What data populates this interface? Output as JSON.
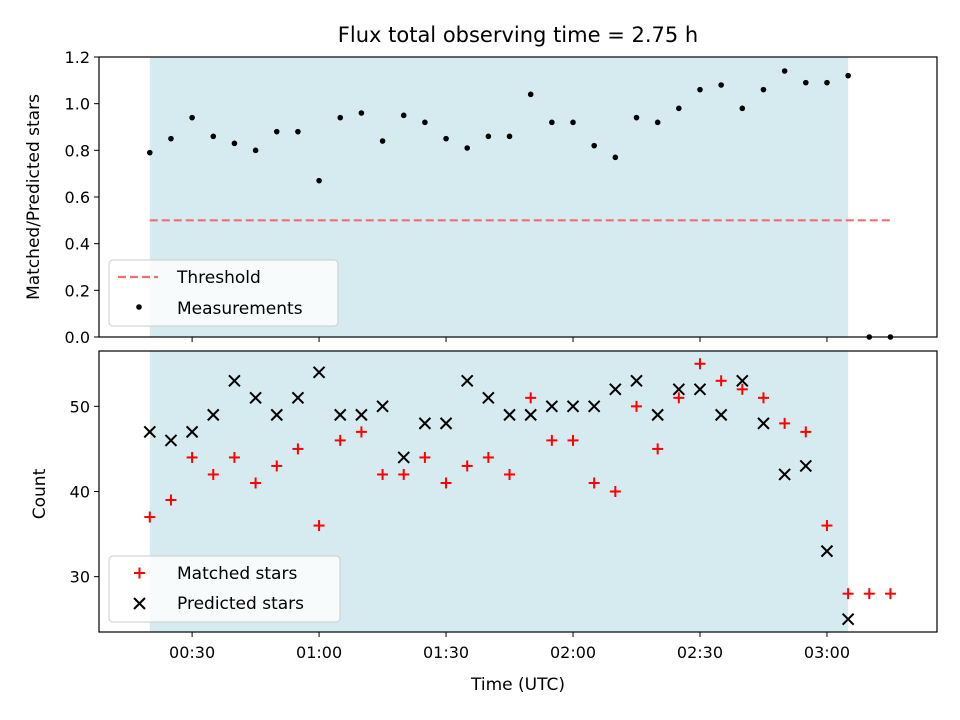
{
  "chart_data": [
    {
      "type": "scatter",
      "title": "Flux total observing time = 2.75 h",
      "xlabel": "",
      "ylabel": "Matched/Predicted stars",
      "xlim": [
        8,
        206
      ],
      "ylim": [
        0,
        1.2
      ],
      "xticks": [
        30,
        60,
        90,
        120,
        150,
        180
      ],
      "yticks": [
        0.0,
        0.2,
        0.4,
        0.6,
        0.8,
        1.0,
        1.2
      ],
      "ytick_labels": [
        "0.0",
        "0.2",
        "0.4",
        "0.6",
        "0.8",
        "1.0",
        "1.2"
      ],
      "shaded_span": [
        20,
        185
      ],
      "threshold": {
        "name": "Threshold",
        "value": 0.5,
        "x_range": [
          20,
          195
        ],
        "color": "#f07070"
      },
      "series": [
        {
          "name": "Measurements",
          "color": "#000000",
          "x": [
            20,
            25,
            30,
            35,
            40,
            45,
            50,
            55,
            60,
            65,
            70,
            75,
            80,
            85,
            90,
            95,
            100,
            105,
            110,
            115,
            120,
            125,
            130,
            135,
            140,
            145,
            150,
            155,
            160,
            165,
            170,
            175,
            180,
            185,
            190,
            195
          ],
          "y": [
            0.79,
            0.85,
            0.94,
            0.86,
            0.83,
            0.8,
            0.88,
            0.88,
            0.67,
            0.94,
            0.96,
            0.84,
            0.95,
            0.92,
            0.85,
            0.81,
            0.86,
            0.86,
            1.04,
            0.92,
            0.92,
            0.82,
            0.77,
            0.94,
            0.92,
            0.98,
            1.06,
            1.08,
            0.98,
            1.06,
            1.14,
            1.09,
            1.09,
            1.12,
            0.0,
            0.0
          ]
        }
      ],
      "legend": {
        "position": "lower-left",
        "entries": [
          "Threshold",
          "Measurements"
        ]
      }
    },
    {
      "type": "scatter",
      "title": "",
      "xlabel": "Time (UTC)",
      "ylabel": "Count",
      "xlim": [
        8,
        206
      ],
      "ylim": [
        23.5,
        56.5
      ],
      "xticks": [
        30,
        60,
        90,
        120,
        150,
        180
      ],
      "xtick_labels": [
        "00:30",
        "01:00",
        "01:30",
        "02:00",
        "02:30",
        "03:00"
      ],
      "yticks": [
        30,
        40,
        50
      ],
      "ytick_labels": [
        "30",
        "40",
        "50"
      ],
      "shaded_span": [
        20,
        185
      ],
      "series": [
        {
          "name": "Matched stars",
          "marker": "plus",
          "color": "#ff0000",
          "x": [
            20,
            25,
            30,
            35,
            40,
            45,
            50,
            55,
            60,
            65,
            70,
            75,
            80,
            85,
            90,
            95,
            100,
            105,
            110,
            115,
            120,
            125,
            130,
            135,
            140,
            145,
            150,
            155,
            160,
            165,
            170,
            175,
            180,
            185,
            190,
            195
          ],
          "y": [
            37,
            39,
            44,
            42,
            44,
            41,
            43,
            45,
            36,
            46,
            47,
            42,
            42,
            44,
            41,
            43,
            44,
            42,
            51,
            46,
            46,
            41,
            40,
            50,
            45,
            51,
            55,
            53,
            52,
            51,
            48,
            47,
            36,
            28,
            28,
            28
          ]
        },
        {
          "name": "Predicted stars",
          "marker": "x",
          "color": "#000000",
          "x": [
            20,
            25,
            30,
            35,
            40,
            45,
            50,
            55,
            60,
            65,
            70,
            75,
            80,
            85,
            90,
            95,
            100,
            105,
            110,
            115,
            120,
            125,
            130,
            135,
            140,
            145,
            150,
            155,
            160,
            165,
            170,
            175,
            180,
            185
          ],
          "y": [
            47,
            46,
            47,
            49,
            53,
            51,
            49,
            51,
            54,
            49,
            49,
            50,
            44,
            48,
            48,
            53,
            51,
            49,
            49,
            50,
            50,
            50,
            52,
            53,
            49,
            52,
            52,
            49,
            53,
            48,
            42,
            43,
            33,
            25
          ]
        }
      ],
      "legend": {
        "position": "lower-left",
        "entries": [
          "Matched stars",
          "Predicted stars"
        ]
      }
    }
  ],
  "colors": {
    "shade": "#d5ebf0"
  }
}
